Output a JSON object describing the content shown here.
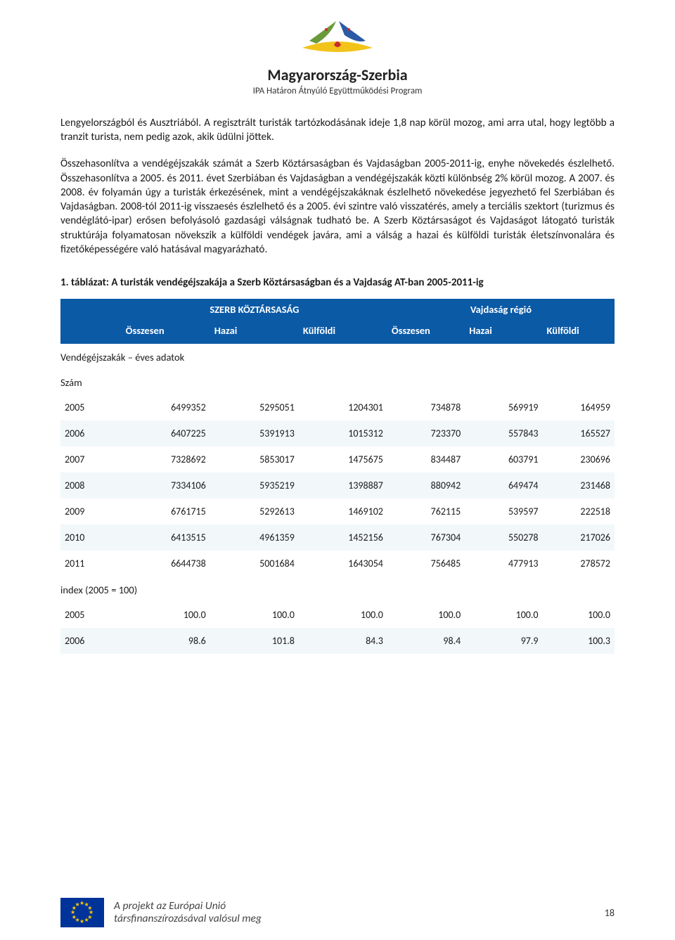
{
  "header": {
    "title": "Magyarország-Szerbia",
    "subtitle": "IPA Határon Átnyúló Együttműködési Program",
    "logo_colors": {
      "yellow": "#f2c319",
      "blue": "#2b5aa6",
      "red": "#c82c2f",
      "green": "#6a9a3b"
    }
  },
  "paragraphs": {
    "p1": "Lengyelországból és Ausztriából. A regisztrált turisták tartózkodásának ideje 1,8 nap körül mozog, ami arra utal, hogy legtöbb a tranzit turista, nem pedig azok, akik üdülni jöttek.",
    "p2": "Összehasonlítva a vendégéjszakák számát a Szerb Köztársaságban és Vajdaságban 2005-2011-ig, enyhe növekedés észlelhető. Összehasonlítva a 2005. és 2011. évet Szerbiában és Vajdaságban a vendégéjszakák közti különbség 2% körül mozog. A 2007. és 2008. év folyamán úgy a turisták érkezésének, mint a vendégéjszakáknak észlelhető növekedése jegyezhető fel Szerbiában és Vajdaságban. 2008-tól 2011-ig visszaesés észlelhető és a 2005. évi szintre való visszatérés, amely a terciális szektort (turizmus és vendéglátó-ipar) erősen befolyásoló gazdasági válságnak tudható be. A Szerb Köztársaságot és Vajdaságot látogató turisták struktúrája folyamatosan növekszik a külföldi vendégek javára, ami a válság a hazai és külföldi turisták életszínvonalára és fizetőképességére való hatásával magyarázható."
  },
  "table": {
    "caption": "1. táblázat: A turisták vendégéjszakája a Szerb Köztársaságban és a Vajdaság AT-ban  2005-2011-ig",
    "header_bg": "#0b5aa6",
    "alt_row_bg": "#f2f7fa",
    "group_headers": {
      "g1": "SZERB KÖZTÁRSASÁG",
      "g2": "Vajdaság régió"
    },
    "col_headers": {
      "blank": "",
      "c1": "Összesen",
      "c2": "Hazai",
      "c3": "Külföldi",
      "c4": "Összesen",
      "c5": "Hazai",
      "c6": "Külföldi"
    },
    "section1": "Vendégéjszakák – éves adatok",
    "section2": "Szám",
    "section3": "index (2005 = 100)",
    "rows_counts": [
      {
        "year": "2005",
        "v": [
          "6499352",
          "5295051",
          "1204301",
          "734878",
          "569919",
          "164959"
        ],
        "alt": false
      },
      {
        "year": "2006",
        "v": [
          "6407225",
          "5391913",
          "1015312",
          "723370",
          "557843",
          "165527"
        ],
        "alt": true
      },
      {
        "year": "2007",
        "v": [
          "7328692",
          "5853017",
          "1475675",
          "834487",
          "603791",
          "230696"
        ],
        "alt": false
      },
      {
        "year": "2008",
        "v": [
          "7334106",
          "5935219",
          "1398887",
          "880942",
          "649474",
          "231468"
        ],
        "alt": true
      },
      {
        "year": "2009",
        "v": [
          "6761715",
          "5292613",
          "1469102",
          "762115",
          "539597",
          "222518"
        ],
        "alt": false
      },
      {
        "year": "2010",
        "v": [
          "6413515",
          "4961359",
          "1452156",
          "767304",
          "550278",
          "217026"
        ],
        "alt": true
      },
      {
        "year": "2011",
        "v": [
          "6644738",
          "5001684",
          "1643054",
          "756485",
          "477913",
          "278572"
        ],
        "alt": false
      }
    ],
    "rows_index": [
      {
        "year": "2005",
        "v": [
          "100.0",
          "100.0",
          "100.0",
          "100.0",
          "100.0",
          "100.0"
        ],
        "alt": false
      },
      {
        "year": "2006",
        "v": [
          "98.6",
          "101.8",
          "84.3",
          "98.4",
          "97.9",
          "100.3"
        ],
        "alt": true
      }
    ]
  },
  "footer": {
    "line1": "A projekt az Európai Unió",
    "line2": "társfinanszírozásával valósul meg",
    "page_number": "18",
    "flag_bg": "#003399",
    "star_color": "#ffcc00"
  }
}
